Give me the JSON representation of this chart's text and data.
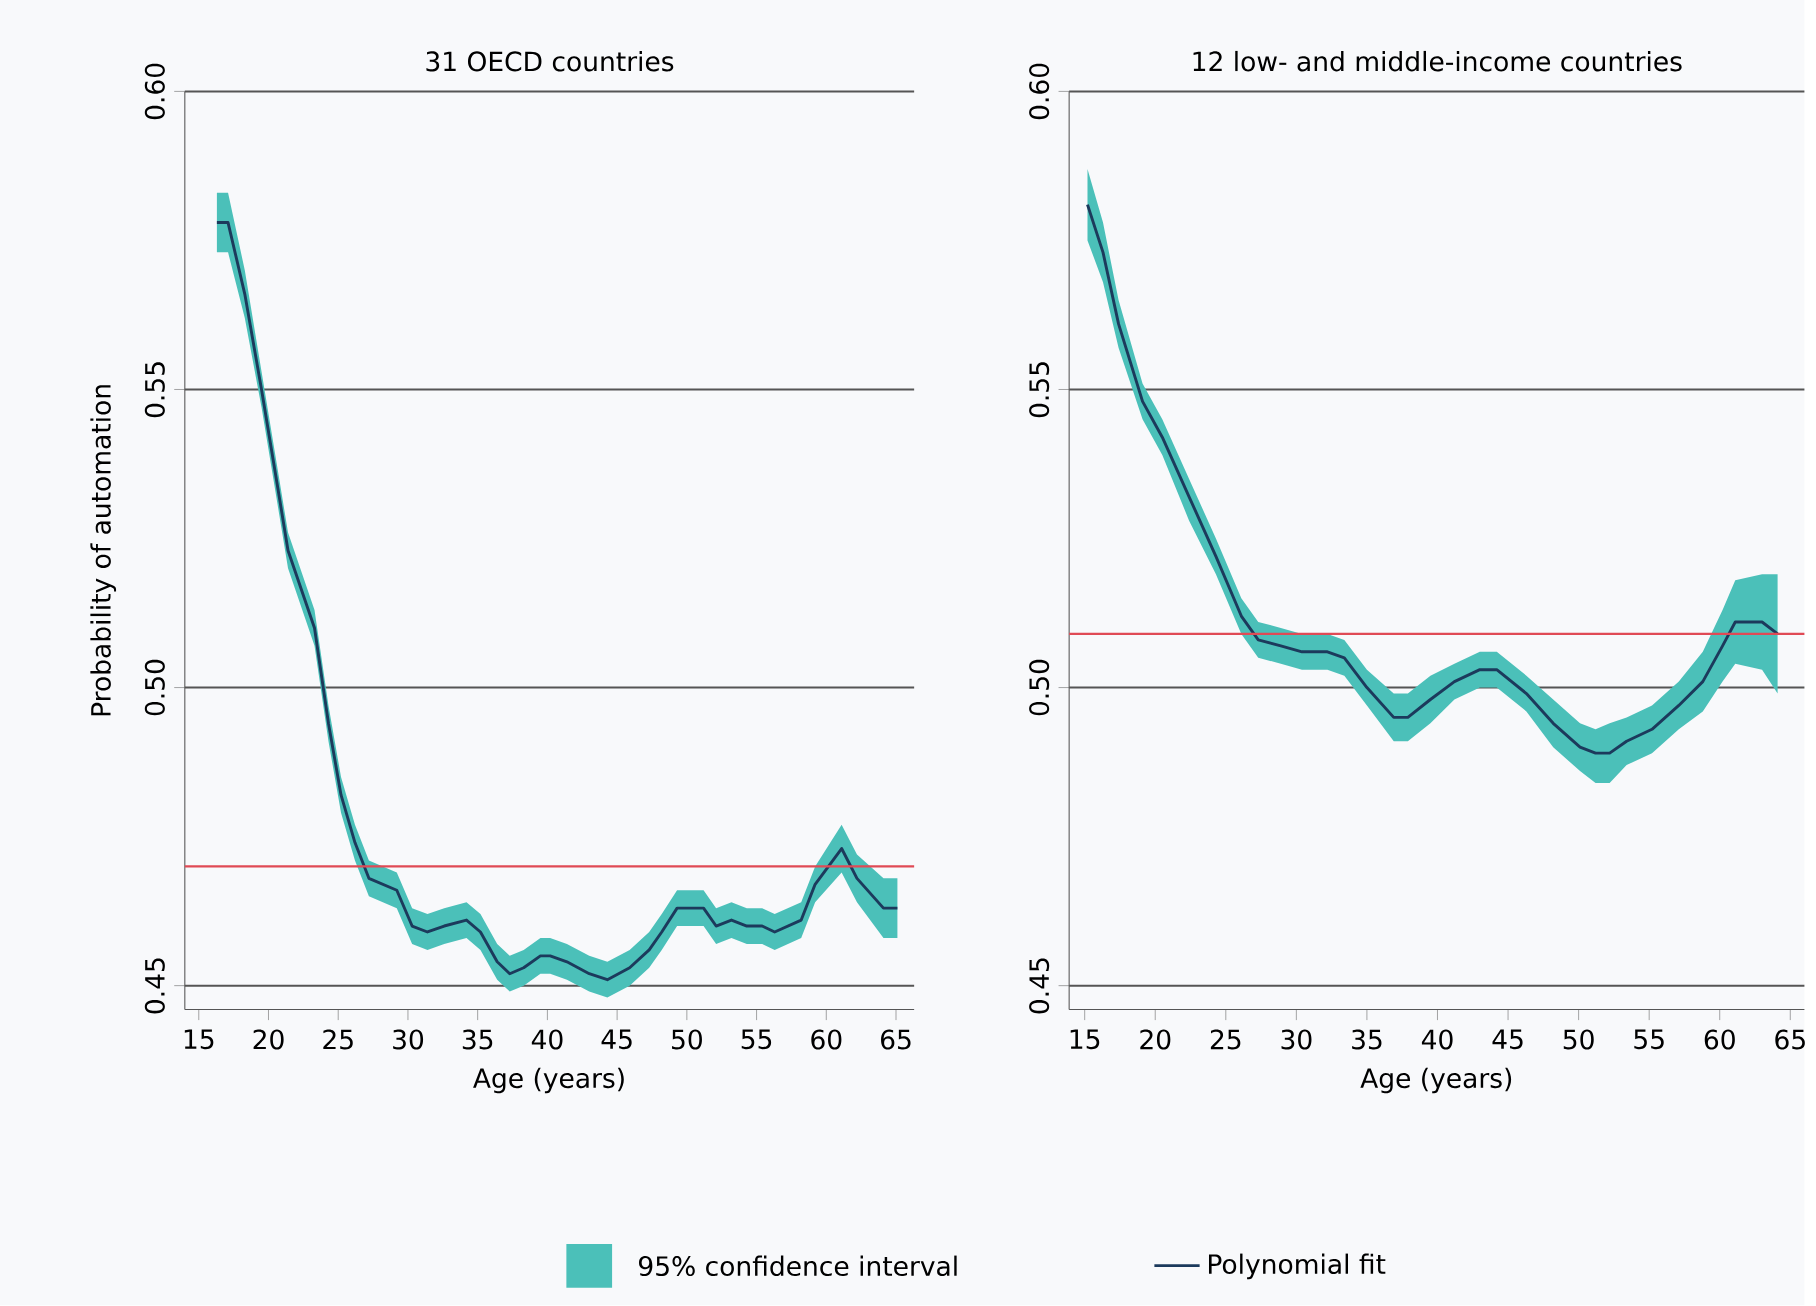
{
  "chart_data": [
    {
      "type": "line",
      "title": "31 OECD countries",
      "xlabel": "Age (years)",
      "ylabel": "Probability of automation",
      "x": [
        16.3,
        17.1,
        18.3,
        19.5,
        20.7,
        21.4,
        23.3,
        24.3,
        25.2,
        26.2,
        27.2,
        29.2,
        30.3,
        31.4,
        32.6,
        34.2,
        35.2,
        36.4,
        37.3,
        38.3,
        39.5,
        40.2,
        41.4,
        43.0,
        44.3,
        45.9,
        47.3,
        48.2,
        49.3,
        50.2,
        51.2,
        52.1,
        53.2,
        54.3,
        55.4,
        56.3,
        58.2,
        59.2,
        61.1,
        62.2,
        64.1,
        65.1
      ],
      "series": [
        {
          "color": "#1c3a5c",
          "values": [
            0.578,
            0.578,
            0.566,
            0.55,
            0.533,
            0.523,
            0.51,
            0.494,
            0.482,
            0.474,
            0.468,
            0.466,
            0.46,
            0.459,
            0.46,
            0.461,
            0.459,
            0.454,
            0.452,
            0.453,
            0.455,
            0.455,
            0.454,
            0.452,
            0.451,
            0.453,
            0.456,
            0.459,
            0.463,
            0.463,
            0.463,
            0.46,
            0.461,
            0.46,
            0.46,
            0.459,
            0.461,
            0.467,
            0.473,
            0.468,
            0.463,
            0.463
          ],
          "lower": [
            0.573,
            0.573,
            0.562,
            0.547,
            0.53,
            0.52,
            0.507,
            0.491,
            0.479,
            0.471,
            0.465,
            0.463,
            0.457,
            0.456,
            0.457,
            0.458,
            0.456,
            0.451,
            0.449,
            0.45,
            0.452,
            0.452,
            0.451,
            0.449,
            0.448,
            0.45,
            0.453,
            0.456,
            0.46,
            0.46,
            0.46,
            0.457,
            0.458,
            0.457,
            0.457,
            0.456,
            0.458,
            0.464,
            0.469,
            0.464,
            0.458,
            0.458
          ],
          "upper": [
            0.583,
            0.583,
            0.57,
            0.553,
            0.536,
            0.526,
            0.513,
            0.497,
            0.485,
            0.477,
            0.471,
            0.469,
            0.463,
            0.462,
            0.463,
            0.464,
            0.462,
            0.457,
            0.455,
            0.456,
            0.458,
            0.458,
            0.457,
            0.455,
            0.454,
            0.456,
            0.459,
            0.462,
            0.466,
            0.466,
            0.466,
            0.463,
            0.464,
            0.463,
            0.463,
            0.462,
            0.464,
            0.47,
            0.477,
            0.472,
            0.468,
            0.468
          ]
        }
      ],
      "xlim": [
        14,
        66.3
      ],
      "xticks": [
        15,
        20,
        25,
        30,
        35,
        40,
        45,
        50,
        55,
        60,
        65
      ],
      "ylim": [
        0.446,
        0.6
      ],
      "yticks": [
        {
          "value": 0.45,
          "label": "0.45"
        },
        {
          "value": 0.5,
          "label": "0.50"
        },
        {
          "value": 0.55,
          "label": "0.55"
        },
        {
          "value": 0.6,
          "label": "0.60"
        }
      ],
      "grid": "y",
      "ref_lines": [
        {
          "axis": "y",
          "value": 0.47,
          "color": "#e04a55"
        }
      ]
    },
    {
      "type": "line",
      "title": "12 low- and middle-income countries",
      "xlabel": "Age (years)",
      "annotations": [
        "95% confidence interval"
      ],
      "x": [
        15.2,
        16.3,
        17.4,
        19.1,
        20.5,
        22.4,
        24.3,
        26.1,
        27.3,
        28.9,
        30.4,
        32.2,
        33.4,
        35.0,
        36.9,
        37.9,
        39.5,
        41.2,
        43.0,
        44.2,
        46.3,
        48.2,
        50.1,
        51.2,
        52.2,
        53.4,
        55.2,
        57.1,
        58.8,
        60.2,
        61.1,
        63.0,
        64.1
      ],
      "series": [
        {
          "name": "Polynomial fit",
          "color": "#1c3a5c",
          "values": [
            0.581,
            0.573,
            0.561,
            0.548,
            0.542,
            0.532,
            0.522,
            0.512,
            0.508,
            0.507,
            0.506,
            0.506,
            0.505,
            0.5,
            0.495,
            0.495,
            0.498,
            0.501,
            0.503,
            0.503,
            0.499,
            0.494,
            0.49,
            0.489,
            0.489,
            0.491,
            0.493,
            0.497,
            0.501,
            0.507,
            0.511,
            0.511,
            0.509
          ],
          "lower": [
            0.575,
            0.568,
            0.557,
            0.545,
            0.539,
            0.528,
            0.519,
            0.509,
            0.505,
            0.504,
            0.503,
            0.503,
            0.502,
            0.497,
            0.491,
            0.491,
            0.494,
            0.498,
            0.5,
            0.5,
            0.496,
            0.49,
            0.486,
            0.484,
            0.484,
            0.487,
            0.489,
            0.493,
            0.496,
            0.501,
            0.504,
            0.503,
            0.499
          ],
          "upper": [
            0.587,
            0.578,
            0.565,
            0.551,
            0.545,
            0.535,
            0.525,
            0.515,
            0.511,
            0.51,
            0.509,
            0.509,
            0.508,
            0.503,
            0.499,
            0.499,
            0.502,
            0.504,
            0.506,
            0.506,
            0.502,
            0.498,
            0.494,
            0.493,
            0.494,
            0.495,
            0.497,
            0.501,
            0.506,
            0.513,
            0.518,
            0.519,
            0.519
          ]
        }
      ],
      "xlim": [
        13.9,
        66
      ],
      "xticks": [
        15,
        20,
        25,
        30,
        35,
        40,
        45,
        50,
        55,
        60,
        65
      ],
      "ylim": [
        0.446,
        0.6
      ],
      "yticks": [
        {
          "value": 0.45,
          "label": "0.45"
        },
        {
          "value": 0.5,
          "label": "0.50"
        },
        {
          "value": 0.55,
          "label": "0.55"
        },
        {
          "value": 0.6,
          "label": "0.60"
        }
      ],
      "grid": "y",
      "legend": "bottom",
      "ref_lines": [
        {
          "axis": "y",
          "value": 0.509,
          "color": "#e04a55"
        }
      ]
    }
  ]
}
